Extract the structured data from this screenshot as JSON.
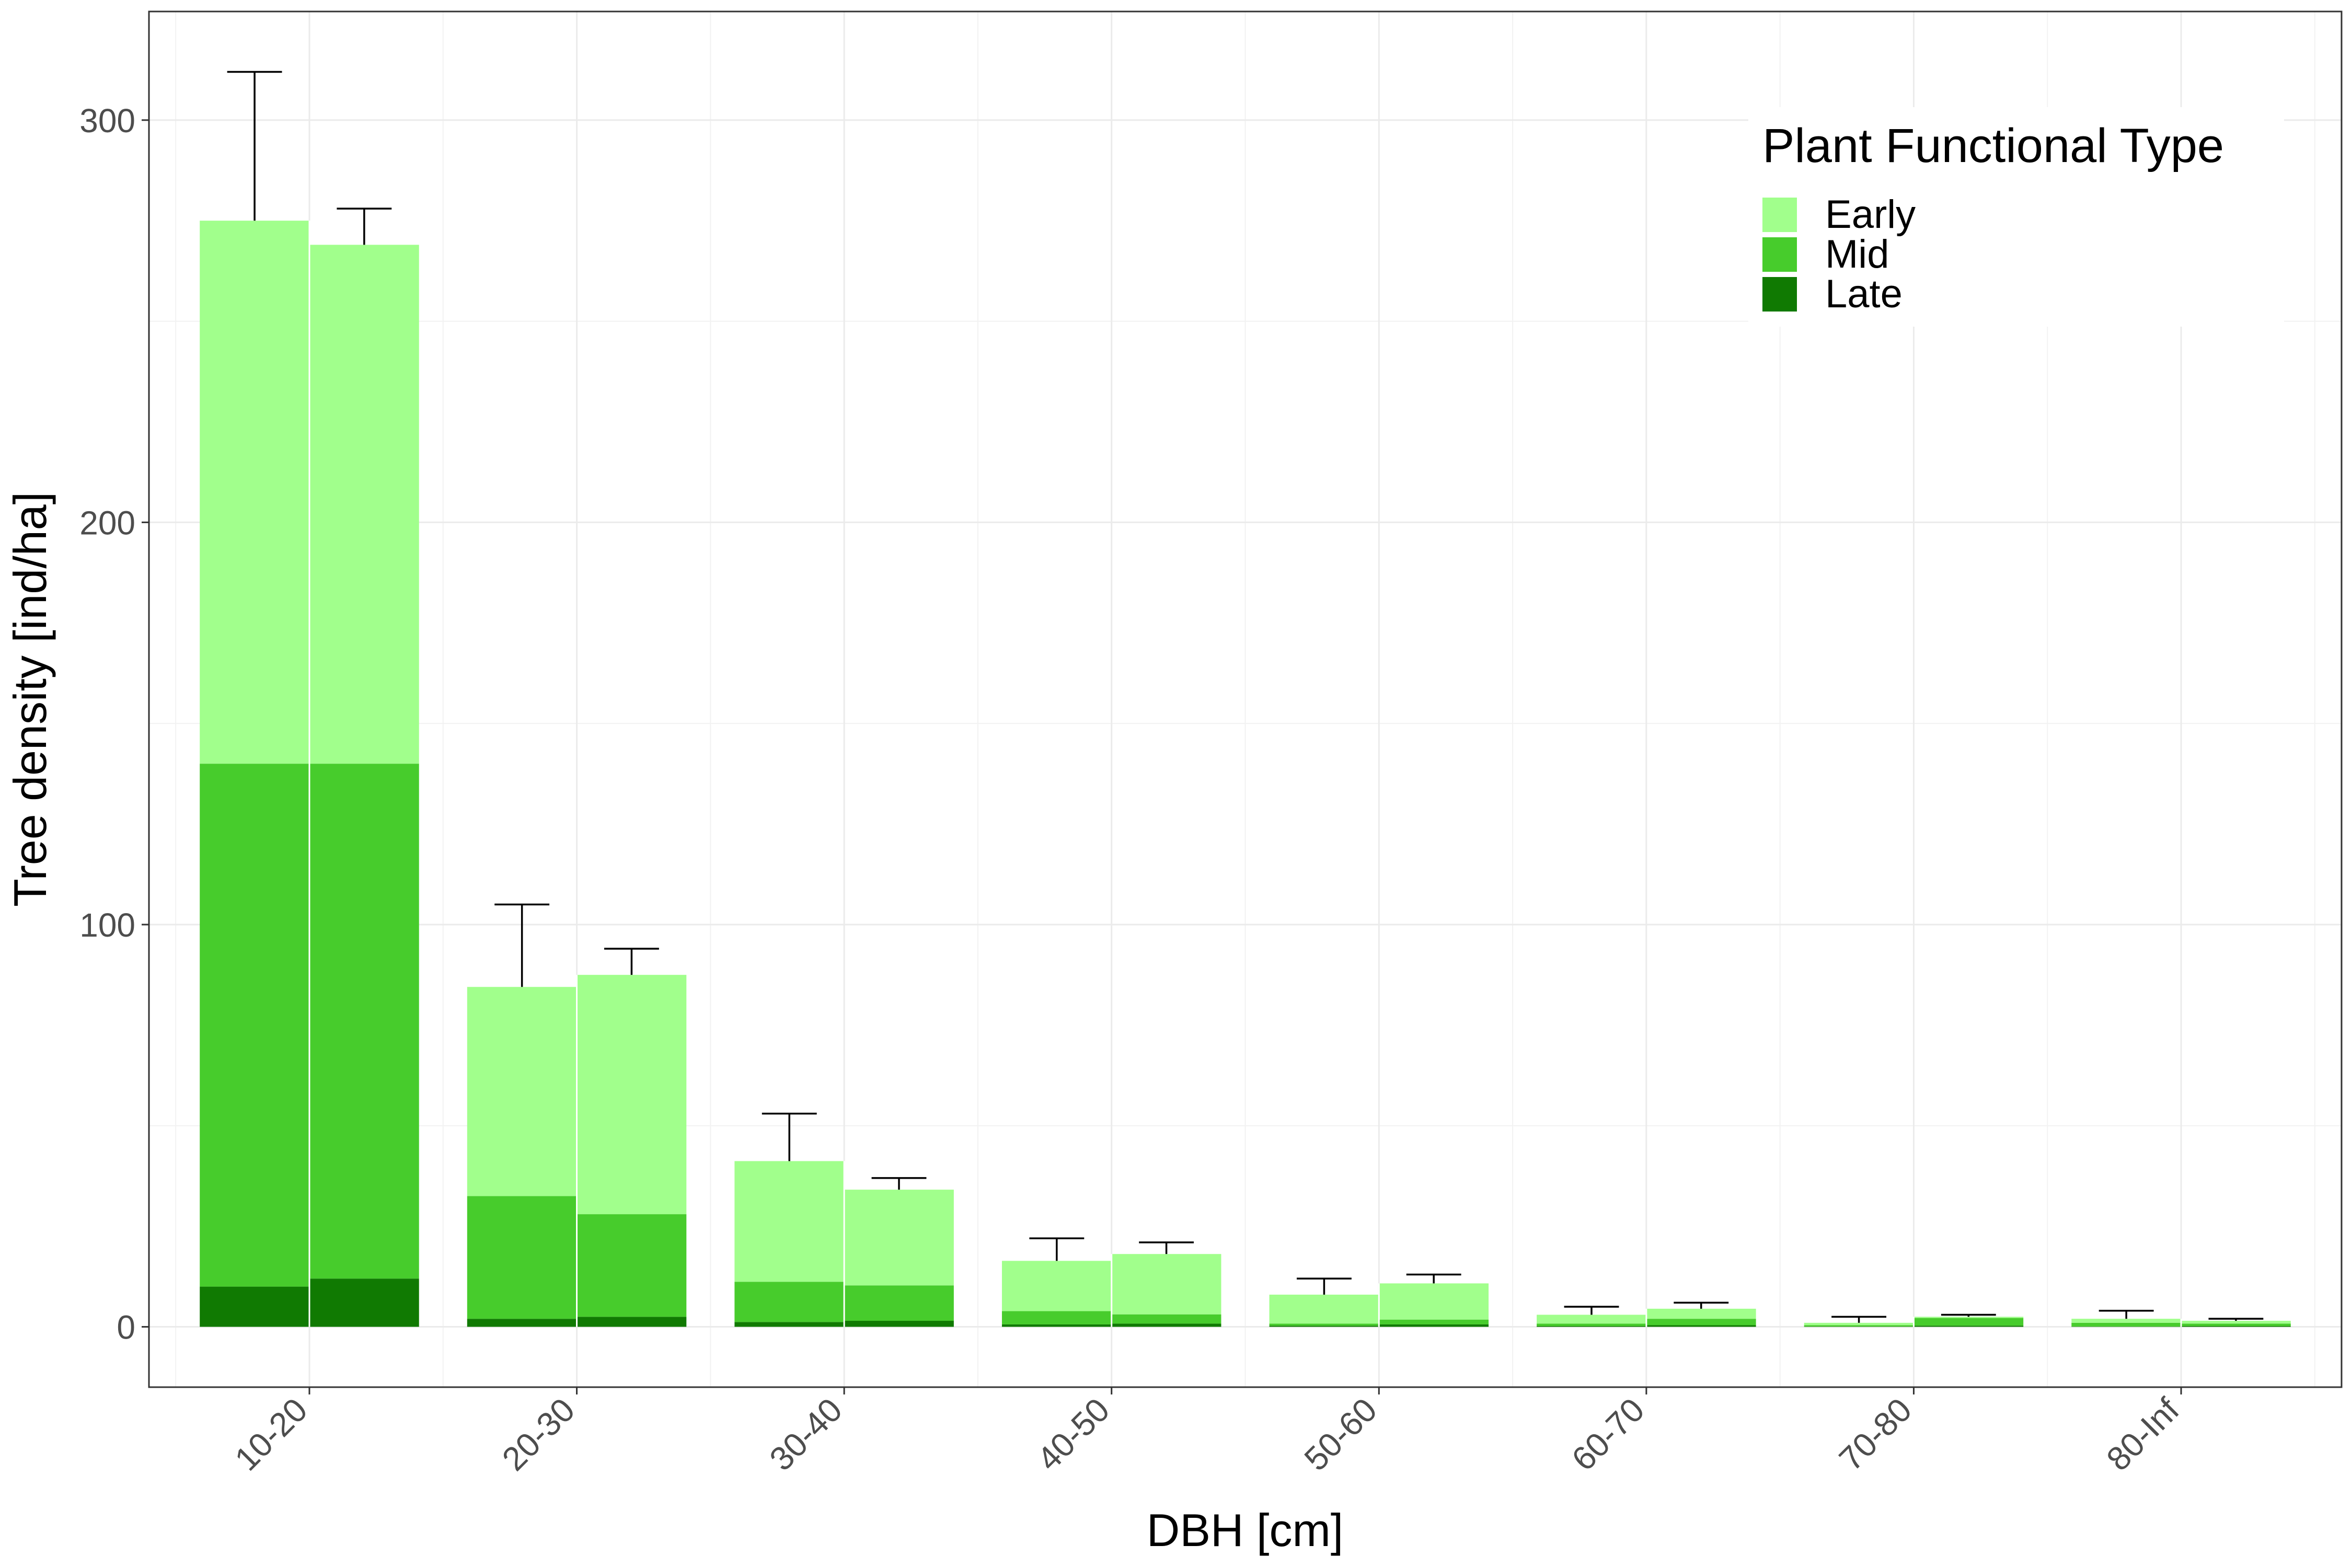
{
  "chart_data": {
    "type": "bar",
    "stacked": true,
    "grouped": true,
    "bars_per_category": 2,
    "xlabel": "DBH [cm]",
    "ylabel": "Tree density [ind/ha]",
    "categories": [
      "10-20",
      "20-30",
      "30-40",
      "40-50",
      "50-60",
      "60-70",
      "70-80",
      "80-Inf"
    ],
    "yticks": [
      0,
      100,
      200,
      300
    ],
    "ylim": [
      -15,
      327
    ],
    "grid": true,
    "legend": {
      "title": "Plant Functional Type",
      "position": "top-right",
      "entries": [
        "Early",
        "Mid",
        "Late"
      ]
    },
    "series": [
      {
        "name": "Late",
        "color": "#107a02",
        "values": [
          [
            10,
            12
          ],
          [
            2,
            2.5
          ],
          [
            1.2,
            1.5
          ],
          [
            0.6,
            0.8
          ],
          [
            0.3,
            0.6
          ],
          [
            0.2,
            0.4
          ],
          [
            0.1,
            0.3
          ],
          [
            0.1,
            0.2
          ]
        ]
      },
      {
        "name": "Mid",
        "color": "#47cc2c",
        "values": [
          [
            130,
            128
          ],
          [
            30.5,
            25.5
          ],
          [
            10,
            8.8
          ],
          [
            3.3,
            2.3
          ],
          [
            0.5,
            1.2
          ],
          [
            0.6,
            1.6
          ],
          [
            0.3,
            1.9
          ],
          [
            0.9,
            0.6
          ]
        ]
      },
      {
        "name": "Early",
        "color": "#a1ff8c",
        "values": [
          [
            135,
            129
          ],
          [
            52,
            59.5
          ],
          [
            30,
            23.8
          ],
          [
            12.5,
            15
          ],
          [
            7.2,
            9
          ],
          [
            2.2,
            2.5
          ],
          [
            0.6,
            0.3
          ],
          [
            1.0,
            0.7
          ]
        ]
      }
    ],
    "error_upper": [
      [
        312,
        278
      ],
      [
        105,
        94
      ],
      [
        53,
        37
      ],
      [
        22,
        21
      ],
      [
        12,
        13
      ],
      [
        5,
        6
      ],
      [
        2.5,
        3
      ],
      [
        4,
        2
      ]
    ]
  }
}
